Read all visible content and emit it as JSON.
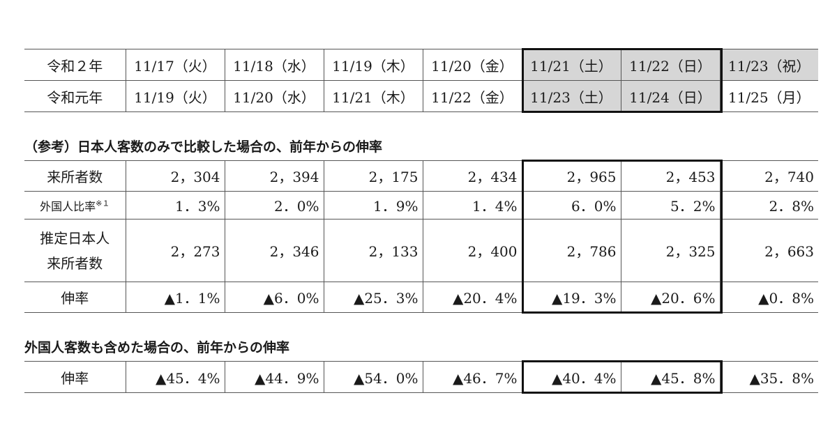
{
  "date_table": {
    "rows": [
      {
        "label": "令和２年",
        "dates": [
          "11/17（火）",
          "11/18（水）",
          "11/19（木）",
          "11/20（金）",
          "11/21（土）",
          "11/22（日）",
          "11/23（祝）"
        ]
      },
      {
        "label": "令和元年",
        "dates": [
          "11/19（火）",
          "11/20（水）",
          "11/21（木）",
          "11/22（金）",
          "11/23（土）",
          "11/24（日）",
          "11/25（月）"
        ]
      }
    ]
  },
  "section1": {
    "heading": "（参考）日本人客数のみで比較した場合の、前年からの伸率",
    "rows": {
      "visitors": {
        "label": "来所者数",
        "values": [
          "2，304",
          "2，394",
          "2，175",
          "2，434",
          "2，965",
          "2，453",
          "2，740"
        ]
      },
      "foreign_ratio": {
        "label": "外国人比率",
        "note": "※１",
        "values": [
          "1．3%",
          "2．0%",
          "1．9%",
          "1．4%",
          "6．0%",
          "5．2%",
          "2．8%"
        ]
      },
      "est_japanese": {
        "label_line1": "推定日本人",
        "label_line2": "来所者数",
        "values": [
          "2，273",
          "2，346",
          "2，133",
          "2，400",
          "2，786",
          "2，325",
          "2，663"
        ]
      },
      "growth": {
        "label": "伸率",
        "values": [
          "▲1．1%",
          "▲6．0%",
          "▲25．3%",
          "▲20．4%",
          "▲19．3%",
          "▲20．6%",
          "▲0．8%"
        ]
      }
    }
  },
  "section2": {
    "heading": "外国人客数も含めた場合の、前年からの伸率",
    "growth": {
      "label": "伸率",
      "values": [
        "▲45．4%",
        "▲44．9%",
        "▲54．0%",
        "▲46．7%",
        "▲40．4%",
        "▲45．8%",
        "▲35．8%"
      ]
    }
  }
}
